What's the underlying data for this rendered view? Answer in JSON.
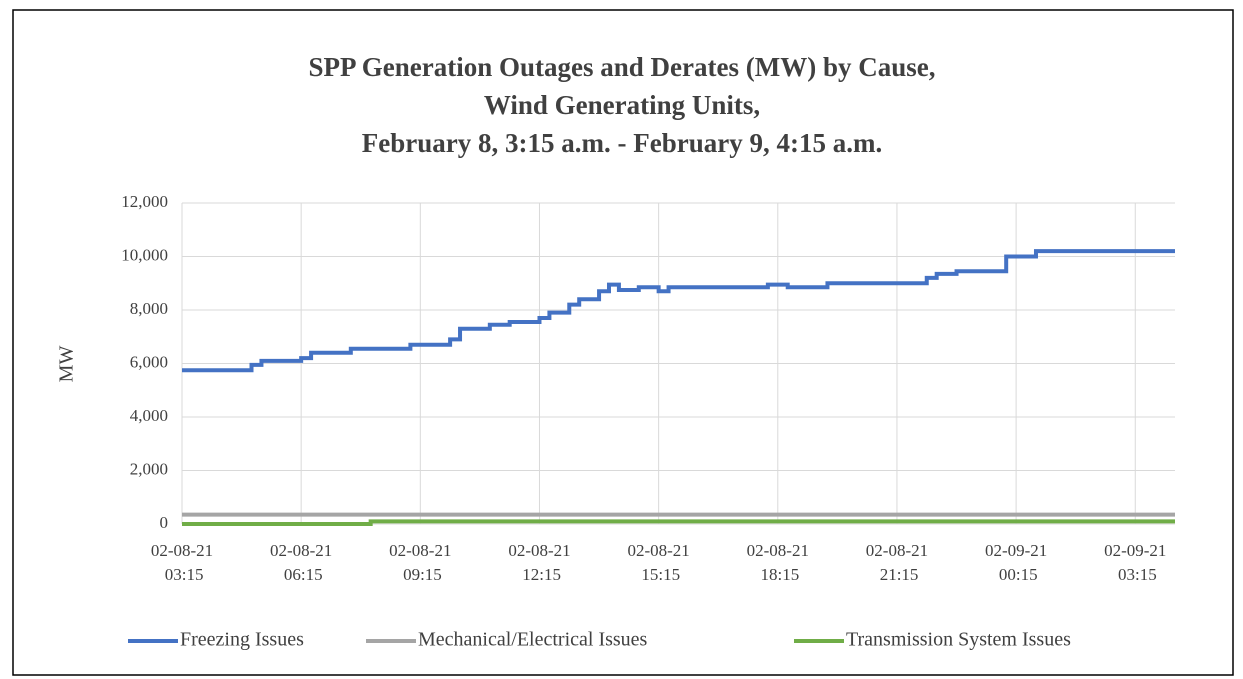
{
  "chart_data": {
    "type": "line",
    "step": "post",
    "title": [
      "SPP Generation Outages and Derates (MW) by Cause,",
      "Wind Generating Units,",
      "February 8, 3:15 a.m. - February 9, 4:15 a.m."
    ],
    "ylabel": "MW",
    "xlim": [
      "02-08-21 03:15",
      "02-09-21 04:15"
    ],
    "xticks": [
      "02-08-21 03:15",
      "02-08-21 06:15",
      "02-08-21 09:15",
      "02-08-21 12:15",
      "02-08-21 15:15",
      "02-08-21 18:15",
      "02-08-21 21:15",
      "02-09-21 00:15",
      "02-09-21 03:15"
    ],
    "ylim": [
      0,
      12000
    ],
    "yticks": [
      0,
      {
        "value": 2000,
        "label": "2,000"
      },
      {
        "value": 4000,
        "label": "4,000"
      },
      {
        "value": 6000,
        "label": "6,000"
      },
      {
        "value": 8000,
        "label": "8,000"
      },
      {
        "value": 10000,
        "label": "10,000"
      },
      {
        "value": 12000,
        "label": "12,000"
      }
    ],
    "grid": true,
    "legend": "bottom",
    "series": [
      {
        "name": "Freezing Issues",
        "color": "#4472c4",
        "x": [
          "02-08-21 03:15",
          "02-08-21 05:00",
          "02-08-21 05:15",
          "02-08-21 06:15",
          "02-08-21 06:30",
          "02-08-21 07:30",
          "02-08-21 09:00",
          "02-08-21 10:00",
          "02-08-21 10:15",
          "02-08-21 11:00",
          "02-08-21 11:30",
          "02-08-21 12:15",
          "02-08-21 12:30",
          "02-08-21 13:00",
          "02-08-21 13:15",
          "02-08-21 13:45",
          "02-08-21 14:00",
          "02-08-21 14:15",
          "02-08-21 14:45",
          "02-08-21 15:15",
          "02-08-21 15:30",
          "02-08-21 18:00",
          "02-08-21 18:30",
          "02-08-21 19:30",
          "02-08-21 22:00",
          "02-08-21 22:15",
          "02-08-21 22:45",
          "02-09-21 00:00",
          "02-09-21 00:45",
          "02-09-21 04:15"
        ],
        "values": [
          5750,
          5950,
          6100,
          6200,
          6400,
          6550,
          6700,
          6900,
          7300,
          7450,
          7550,
          7700,
          7900,
          8200,
          8400,
          8700,
          8950,
          8750,
          8850,
          8700,
          8850,
          8950,
          8850,
          9000,
          9200,
          9350,
          9450,
          10000,
          10200,
          10200
        ]
      },
      {
        "name": "Mechanical/Electrical Issues",
        "color": "#a5a5a5",
        "x": [
          "02-08-21 03:15",
          "02-09-21 04:15"
        ],
        "values": [
          350,
          350
        ]
      },
      {
        "name": "Transmission System Issues",
        "color": "#70ad47",
        "x": [
          "02-08-21 03:15",
          "02-08-21 08:00",
          "02-09-21 04:15"
        ],
        "values": [
          0,
          100,
          100
        ]
      }
    ]
  }
}
